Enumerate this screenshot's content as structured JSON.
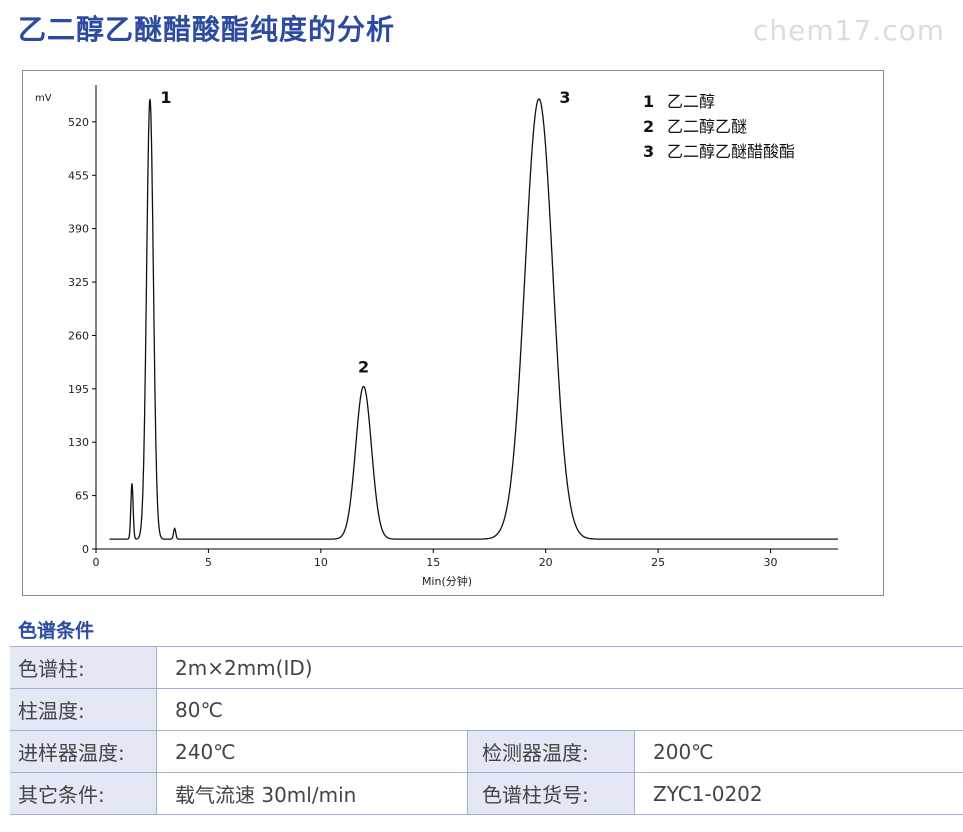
{
  "header": {
    "title": "乙二醇乙醚醋酸酯纯度的分析",
    "watermark": "chem17.com"
  },
  "chart_data": {
    "type": "line",
    "ylabel": "mV",
    "xlabel": "Min(分钟)",
    "y_ticks": [
      0,
      65,
      130,
      195,
      260,
      325,
      390,
      455,
      520
    ],
    "x_ticks": [
      0,
      5,
      10,
      15,
      20,
      25,
      30
    ],
    "xlim": [
      0,
      33
    ],
    "ylim": [
      0,
      560
    ],
    "baseline": 12,
    "grid": false,
    "legend_position": "top-right",
    "peaks": [
      {
        "label": "1",
        "time": 2.4,
        "height": 548
      },
      {
        "label": "2",
        "time": 11.9,
        "height": 198
      },
      {
        "label": "3",
        "time": 19.7,
        "height": 548
      }
    ],
    "minor_peaks": [
      {
        "time": 1.6,
        "height": 80
      },
      {
        "time": 3.5,
        "height": 25
      }
    ],
    "legend": [
      {
        "num": "1",
        "name": "乙二醇"
      },
      {
        "num": "2",
        "name": "乙二醇乙醚"
      },
      {
        "num": "3",
        "name": "乙二醇乙醚醋酸酯"
      }
    ]
  },
  "conditions": {
    "title": "色谱条件",
    "rows": [
      {
        "label": "色谱柱:",
        "value": "2m×2mm(ID)"
      },
      {
        "label": "柱温度:",
        "value": "80℃"
      },
      {
        "label": "进样器温度:",
        "value": "240℃",
        "label2": "检测器温度:",
        "value2": "200℃"
      },
      {
        "label": "其它条件:",
        "value": "载气流速 30ml/min",
        "label2": "色谱柱货号:",
        "value2": "ZYC1-0202"
      }
    ]
  }
}
